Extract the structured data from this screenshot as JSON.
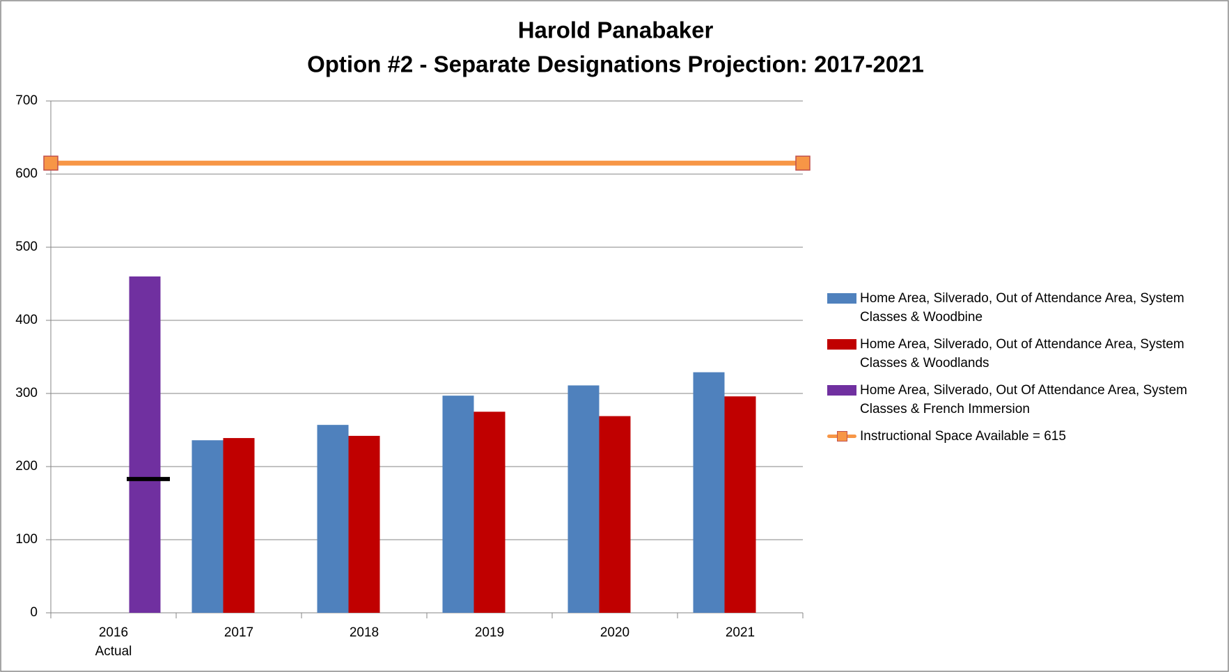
{
  "chart_data": {
    "type": "bar",
    "title": "Harold Panabaker",
    "subtitle": "Option #2 - Separate Designations Projection: 2017-2021",
    "categories": [
      "2016\nActual",
      "2017",
      "2018",
      "2019",
      "2020",
      "2021"
    ],
    "series": [
      {
        "name": "Home Area, Silverado, Out of Attendance Area, System Classes & Woodbine",
        "color": "#4f81bd",
        "values": [
          null,
          236,
          257,
          297,
          311,
          329
        ]
      },
      {
        "name": "Home Area, Silverado, Out of Attendance Area, System Classes & Woodlands",
        "color": "#c00000",
        "values": [
          null,
          239,
          242,
          275,
          269,
          296
        ]
      },
      {
        "name": "Home Area, Silverado, Out Of Attendance Area, System Classes & French Immersion",
        "color": "#7030a0",
        "values": [
          460,
          null,
          null,
          null,
          null,
          null
        ]
      }
    ],
    "marker": {
      "color": "#000000",
      "values": [
        183,
        null,
        null,
        null,
        null,
        null
      ]
    },
    "line": {
      "name": "Instructional Space Available = 615",
      "color": "#f79646",
      "marker_edge": "#c0504d",
      "values": [
        615,
        615
      ]
    },
    "ylim": [
      0,
      700
    ],
    "yticks": [
      0,
      100,
      200,
      300,
      400,
      500,
      600,
      700
    ],
    "grid": true,
    "legend": "right"
  }
}
